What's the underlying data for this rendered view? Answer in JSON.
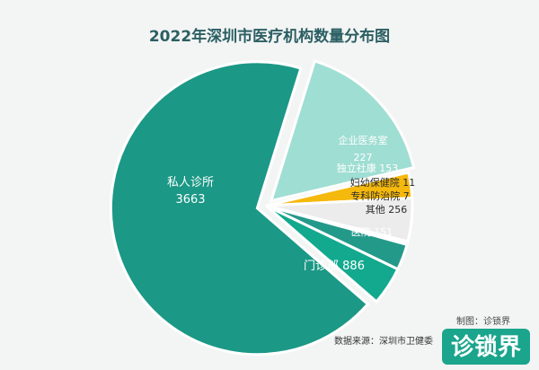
{
  "chart_data": {
    "type": "pie",
    "title": "2022年深圳市医疗机构数量分布图",
    "slices": [
      {
        "label": "私人诊所",
        "value": 3663,
        "color": "#1b9886"
      },
      {
        "label": "门诊部",
        "value": 886,
        "color": "#9fded3"
      },
      {
        "label": "医院",
        "value": 151,
        "color": "#f5b80c"
      },
      {
        "label": "其他",
        "value": 256,
        "color": "#ececec"
      },
      {
        "label": "专科防治院",
        "value": 7,
        "color": "#dcdcdc"
      },
      {
        "label": "妇幼保健院",
        "value": 11,
        "color": "#d0d0d0"
      },
      {
        "label": "独立社康",
        "value": 153,
        "color": "#23998a"
      },
      {
        "label": "企业医务室",
        "value": 227,
        "color": "#12a98e"
      }
    ],
    "exploded": [
      "私人诊所",
      "门诊部"
    ]
  },
  "footer": {
    "source": "数据来源：深圳市卫健委",
    "credit": "制图：诊锁界"
  },
  "logo": {
    "text": "诊锁界"
  }
}
